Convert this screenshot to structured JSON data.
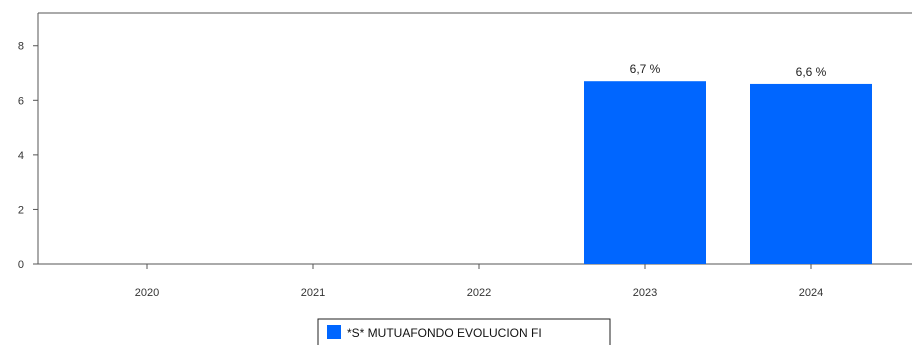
{
  "chart_data": {
    "type": "bar",
    "categories": [
      "2020",
      "2021",
      "2022",
      "2023",
      "2024"
    ],
    "series": [
      {
        "name": "*S* MUTUAFONDO EVOLUCION FI",
        "values": [
          null,
          null,
          null,
          6.7,
          6.6
        ],
        "data_labels": [
          "",
          "",
          "",
          "6,7 %",
          "6,6 %"
        ]
      }
    ],
    "yticks": [
      "0",
      "2",
      "4",
      "6",
      "8"
    ],
    "ylim": [
      0,
      9.2
    ],
    "grid": false,
    "legend_position": "bottom-center",
    "colors": {
      "bar": "#0066ff",
      "axis": "#555555",
      "text": "#333333"
    }
  }
}
